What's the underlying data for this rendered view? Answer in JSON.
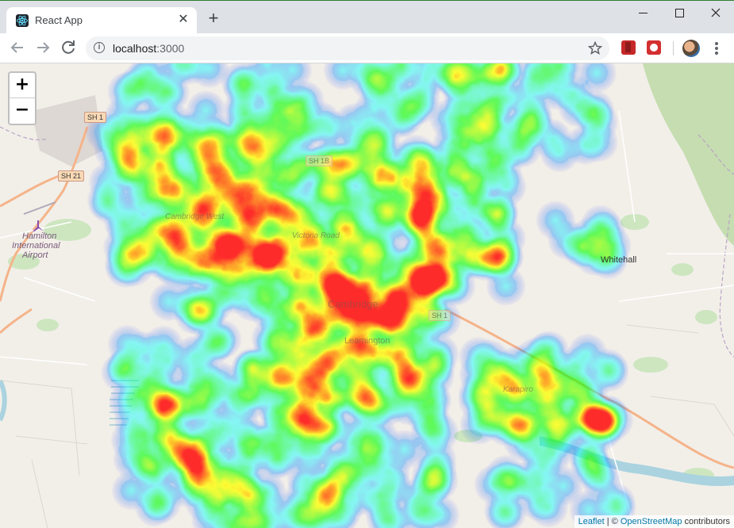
{
  "browser": {
    "tab_title": "React App",
    "url_host": "localhost",
    "url_port": ":3000",
    "icons": [
      "react-favicon",
      "close-icon",
      "plus-icon",
      "minimize-icon",
      "maximize-icon",
      "close-window-icon",
      "back-icon",
      "forward-icon",
      "reload-icon",
      "info-icon",
      "star-icon",
      "menu-icon"
    ]
  },
  "map": {
    "zoom_in": "+",
    "zoom_out": "−",
    "labels": {
      "hamilton_airport_1": "Hamilton",
      "hamilton_airport_2": "International",
      "hamilton_airport_3": "Airport",
      "whitehall": "Whitehall",
      "cambridge": "Cambridge",
      "cambridge_west": "Cambridge West",
      "victoria_road": "Victoria Road",
      "leamington": "Leamington",
      "karapiro": "Karapiro"
    },
    "shields": {
      "sh1_top": "SH 1",
      "sh21": "SH 21",
      "sh1b": "SH 1B",
      "sh1_mid": "SH 1"
    },
    "attribution": {
      "leaflet": "Leaflet",
      "separator": " | © ",
      "osm": "OpenStreetMap",
      "contributors": " contributors"
    },
    "colors": {
      "land": "#f2efe9",
      "park": "#c8e4bf",
      "forest": "#add19e",
      "water": "#aad3df",
      "road": "#f7c9a0"
    },
    "heatmap_gradient": [
      "blue",
      "cyan",
      "lime",
      "yellow",
      "red"
    ]
  }
}
